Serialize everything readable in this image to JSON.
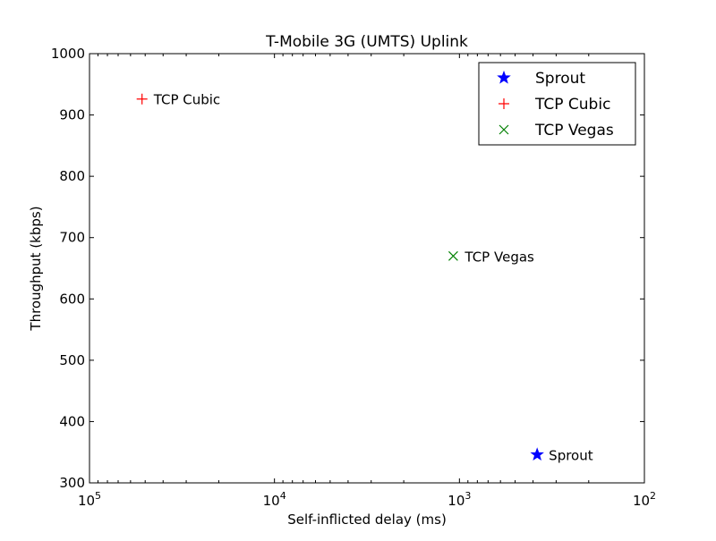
{
  "chart_data": {
    "type": "scatter",
    "title": "T-Mobile 3G (UMTS) Uplink",
    "xlabel": "Self-inflicted delay (ms)",
    "ylabel": "Throughput (kbps)",
    "x_scale": "log",
    "x_reversed": true,
    "xlim": [
      100000,
      100
    ],
    "ylim": [
      300,
      1000
    ],
    "x_ticks": [
      {
        "value": 100000,
        "base": "10",
        "exp": "5"
      },
      {
        "value": 10000,
        "base": "10",
        "exp": "4"
      },
      {
        "value": 1000,
        "base": "10",
        "exp": "3"
      },
      {
        "value": 100,
        "base": "10",
        "exp": "2"
      }
    ],
    "y_ticks": [
      300,
      400,
      500,
      600,
      700,
      800,
      900,
      1000
    ],
    "grid": false,
    "legend_position": "top-right",
    "series": [
      {
        "name": "Sprout",
        "marker": "star",
        "color": "#0000ff",
        "x": 380,
        "y": 346,
        "label": "Sprout"
      },
      {
        "name": "TCP Cubic",
        "marker": "plus",
        "color": "#ff0000",
        "x": 52000,
        "y": 926,
        "label": "TCP Cubic"
      },
      {
        "name": "TCP Vegas",
        "marker": "x",
        "color": "#008000",
        "x": 1080,
        "y": 670,
        "label": "TCP Vegas"
      }
    ]
  }
}
